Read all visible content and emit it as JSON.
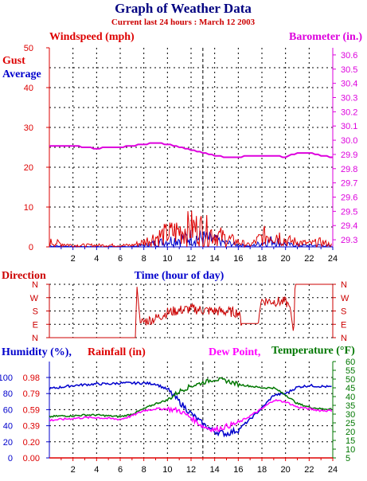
{
  "header": {
    "title": "Graph of Weather Data",
    "subtitle": "Current last 24 hours : March 12 2003"
  },
  "colors": {
    "title": "#000080",
    "subtitle": "#cc0000",
    "gust": "#dd0000",
    "average": "#0000cc",
    "barometer": "#dd00dd",
    "direction": "#cc0000",
    "humidity": "#0000cc",
    "rainfall": "#dd0000",
    "dewpoint": "#ff00ff",
    "temperature": "#007700",
    "grid": "#000000"
  },
  "chart_data": [
    {
      "type": "line",
      "id": "wind-baro",
      "left_axis_title": "Windspeed (mph)",
      "right_axis_title": "Barometer (in.)",
      "legend": [
        "Gust",
        "Average"
      ],
      "xlabel": "Time (hour of day)",
      "xlim": [
        0,
        24
      ],
      "x_ticks": [
        2,
        4,
        6,
        8,
        10,
        12,
        14,
        16,
        18,
        20,
        22,
        24
      ],
      "ylim_left": [
        0,
        50
      ],
      "y_ticks_left": [
        0,
        10,
        20,
        30,
        40,
        50
      ],
      "ylim_right": [
        29.25,
        30.65
      ],
      "y_ticks_right": [
        29.3,
        29.4,
        29.5,
        29.6,
        29.7,
        29.8,
        29.9,
        30.0,
        30.1,
        30.2,
        30.3,
        30.4,
        30.5,
        30.6
      ],
      "series": [
        {
          "name": "Barometer",
          "axis": "right",
          "x": [
            0,
            1,
            2,
            3,
            4,
            5,
            6,
            7,
            8,
            9,
            10,
            11,
            12,
            13,
            14,
            15,
            16,
            17,
            18,
            19,
            20,
            21,
            22,
            23,
            24
          ],
          "values": [
            29.96,
            29.96,
            29.96,
            29.95,
            29.94,
            29.95,
            29.95,
            29.96,
            29.97,
            29.98,
            29.97,
            29.95,
            29.93,
            29.91,
            29.89,
            29.88,
            29.88,
            29.89,
            29.89,
            29.89,
            29.88,
            29.91,
            29.91,
            29.89,
            29.88
          ]
        },
        {
          "name": "Gust",
          "axis": "left",
          "x": [
            0,
            1,
            2,
            3,
            4,
            5,
            6,
            7,
            8,
            9,
            10,
            11,
            12,
            13,
            14,
            15,
            16,
            17,
            18,
            19,
            20,
            21,
            22,
            23,
            24
          ],
          "values": [
            1.5,
            1.0,
            0.5,
            0.5,
            0.5,
            0.5,
            0.5,
            0.5,
            1.5,
            3.0,
            4.0,
            5.0,
            6.0,
            5.5,
            4.0,
            2.5,
            1.5,
            0.5,
            3.0,
            4.5,
            2.0,
            1.5,
            1.0,
            1.5,
            0.5
          ]
        },
        {
          "name": "Average",
          "axis": "left",
          "x": [
            0,
            1,
            2,
            3,
            4,
            5,
            6,
            7,
            8,
            9,
            10,
            11,
            12,
            13,
            14,
            15,
            16,
            17,
            18,
            19,
            20,
            21,
            22,
            23,
            24
          ],
          "values": [
            0.3,
            0.2,
            0.1,
            0.1,
            0.1,
            0.1,
            0.1,
            0.1,
            0.5,
            1.2,
            1.8,
            2.5,
            3.0,
            2.8,
            2.0,
            1.2,
            0.6,
            0.2,
            1.2,
            2.0,
            0.8,
            0.5,
            0.4,
            0.5,
            0.2
          ]
        }
      ]
    },
    {
      "type": "line",
      "id": "direction",
      "ylabel": "Direction",
      "xlim": [
        0,
        24
      ],
      "y_ticks": [
        "N",
        "W",
        "S",
        "E",
        "N"
      ],
      "y_values": [
        360,
        270,
        180,
        90,
        0
      ],
      "series": [
        {
          "name": "Direction",
          "x": [
            0,
            7.3,
            7.4,
            7.7,
            8.3,
            9,
            10,
            11,
            12,
            13,
            14,
            15,
            16,
            16.3,
            17.7,
            17.9,
            19,
            20,
            20.4,
            20.7,
            20.8,
            24
          ],
          "values": [
            0,
            0,
            360,
            100,
            115,
            130,
            170,
            185,
            195,
            185,
            180,
            175,
            170,
            95,
            95,
            250,
            245,
            240,
            205,
            15,
            360,
            360
          ]
        }
      ]
    },
    {
      "type": "line",
      "id": "humidity-temp",
      "left_labels": [
        "Humidity (%),",
        "Rainfall (in)"
      ],
      "right_labels": [
        "Dew Point,",
        "Temperature (°F)"
      ],
      "xlim": [
        0,
        24
      ],
      "x_ticks": [
        2,
        4,
        6,
        8,
        10,
        12,
        14,
        16,
        18,
        20,
        22,
        24
      ],
      "humidity_ticks": [
        0,
        20,
        40,
        60,
        80,
        100
      ],
      "rainfall_ticks": [
        "0.00",
        "0.20",
        "0.39",
        "0.59",
        "0.79",
        "0.98"
      ],
      "ylim_humidity": [
        0,
        100
      ],
      "temp_ticks": [
        5,
        10,
        15,
        20,
        25,
        30,
        35,
        40,
        45,
        50,
        55,
        60
      ],
      "ylim_temp": [
        5,
        60
      ],
      "series": [
        {
          "name": "Humidity",
          "axis": "humidity",
          "x": [
            0,
            1,
            2,
            3,
            4,
            5,
            6,
            7,
            8,
            9,
            10,
            11,
            12,
            13,
            14,
            15,
            16,
            17,
            18,
            19,
            20,
            21,
            22,
            23,
            24
          ],
          "values": [
            86,
            88,
            90,
            91,
            92,
            92,
            93,
            93,
            93,
            92,
            85,
            70,
            55,
            42,
            33,
            30,
            35,
            48,
            62,
            78,
            80,
            88,
            90,
            89,
            88
          ]
        },
        {
          "name": "Temperature",
          "axis": "temp",
          "x": [
            0,
            1,
            2,
            3,
            4,
            5,
            6,
            7,
            8,
            9,
            10,
            11,
            12,
            13,
            14,
            15,
            16,
            17,
            18,
            19,
            20,
            21,
            22,
            23,
            24
          ],
          "values": [
            28.5,
            29,
            29,
            29.5,
            29.5,
            29,
            28.5,
            30,
            33,
            36,
            38,
            43,
            46,
            48,
            50,
            49,
            47,
            46,
            45,
            45,
            41,
            36,
            34,
            33,
            33
          ]
        },
        {
          "name": "Dew Point",
          "axis": "temp",
          "x": [
            0,
            1,
            2,
            3,
            4,
            5,
            6,
            7,
            8,
            9,
            10,
            11,
            12,
            13,
            14,
            15,
            16,
            17,
            18,
            19,
            20,
            21,
            22,
            23,
            24
          ],
          "values": [
            26.5,
            27,
            27.5,
            28,
            28,
            27.5,
            27,
            29,
            32,
            33,
            33,
            32,
            28,
            23,
            21,
            23,
            25,
            29,
            33,
            38,
            37,
            34,
            33,
            32,
            32
          ]
        }
      ]
    }
  ]
}
